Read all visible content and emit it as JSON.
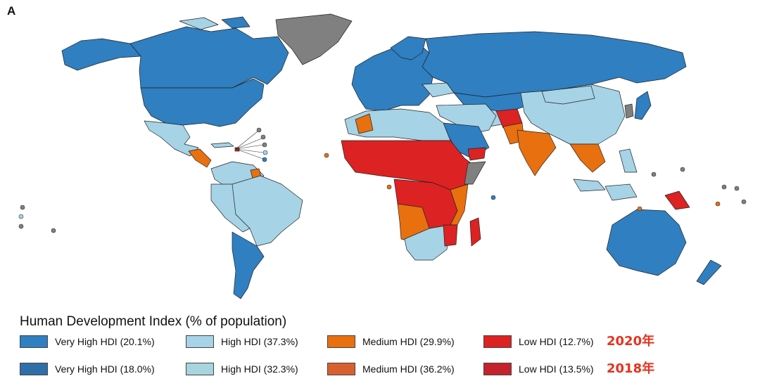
{
  "panel_label": "A",
  "colors": {
    "very_high": "#2f7fc1",
    "high": "#a6d3e6",
    "medium": "#e8700f",
    "low": "#dc2222",
    "no_data": "#808080",
    "very_high_2018": "#2f6fa9",
    "high_2018": "#a7d4de",
    "medium_2018": "#d8602f",
    "low_2018": "#c4232e",
    "year_label": "#e8321e"
  },
  "legend": {
    "title": "Human Development Index (% of population)",
    "rows": [
      {
        "year": "2020年",
        "items": [
          {
            "label": "Very High HDI (20.1%)",
            "color": "#2f7fc1"
          },
          {
            "label": "High HDI (37.3%)",
            "color": "#a6d3e6"
          },
          {
            "label": "Medium HDI (29.9%)",
            "color": "#e8700f"
          },
          {
            "label": "Low HDI (12.7%)",
            "color": "#dc2222"
          }
        ]
      },
      {
        "year": "2018年",
        "items": [
          {
            "label": "Very High HDI (18.0%)",
            "color": "#2f6fa9"
          },
          {
            "label": "High HDI (32.3%)",
            "color": "#a7d4de"
          },
          {
            "label": "Medium HDI (36.2%)",
            "color": "#d8602f"
          },
          {
            "label": "Low HDI (13.5%)",
            "color": "#c4232e"
          }
        ]
      }
    ]
  }
}
